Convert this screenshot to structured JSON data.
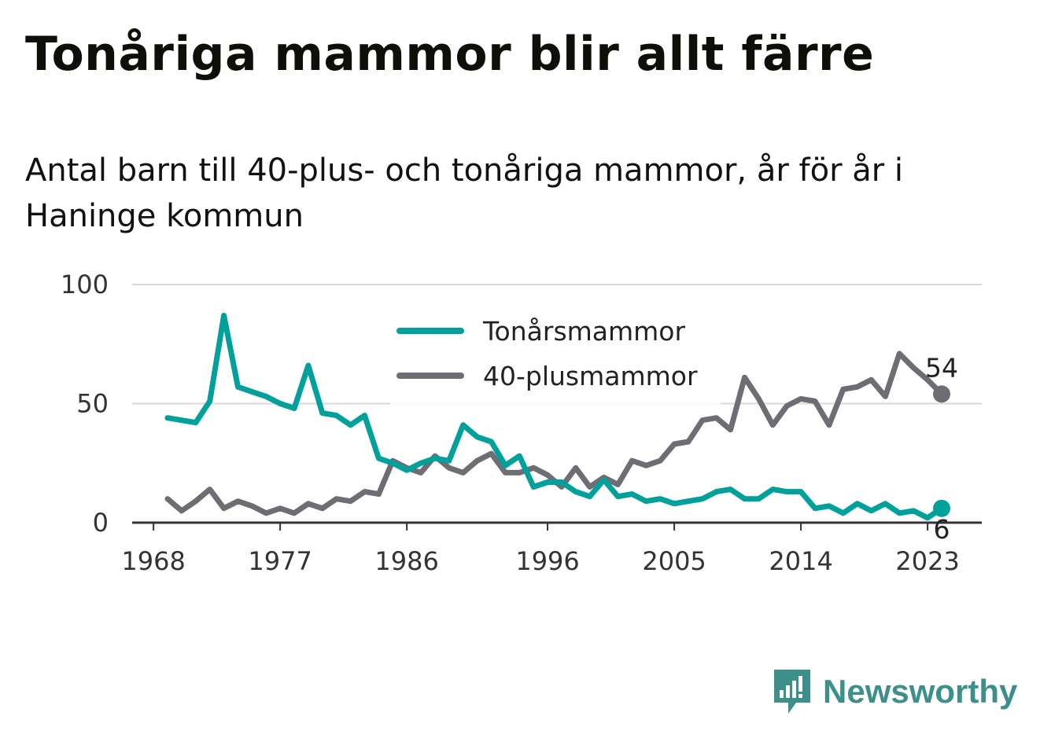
{
  "header": {
    "title": "Tonåriga mammor blir allt färre",
    "subtitle": "Antal barn till 40-plus- och tonåriga mammor, år för år i Haninge kommun"
  },
  "chart_data": {
    "type": "line",
    "title": "Tonåriga mammor blir allt färre",
    "subtitle": "Antal barn till 40-plus- och tonåriga mammor, år för år i Haninge kommun",
    "xlabel": "",
    "ylabel": "",
    "x": [
      1969,
      1970,
      1971,
      1972,
      1973,
      1974,
      1975,
      1976,
      1977,
      1978,
      1979,
      1980,
      1981,
      1982,
      1983,
      1984,
      1985,
      1986,
      1987,
      1988,
      1989,
      1990,
      1991,
      1992,
      1993,
      1994,
      1995,
      1996,
      1997,
      1998,
      1999,
      2000,
      2001,
      2002,
      2003,
      2004,
      2005,
      2006,
      2007,
      2008,
      2009,
      2010,
      2011,
      2012,
      2013,
      2014,
      2015,
      2016,
      2017,
      2018,
      2019,
      2020,
      2021,
      2022,
      2023,
      2024
    ],
    "xlim": [
      1968,
      2026
    ],
    "ylim": [
      0,
      100
    ],
    "x_ticks": [
      "1968",
      "1977",
      "1986",
      "1996",
      "2005",
      "2014",
      "2023"
    ],
    "y_ticks": [
      "0",
      "50",
      "100"
    ],
    "grid": true,
    "legend_position": "top-center",
    "series": [
      {
        "name": "Tonårsmammor",
        "color": "#00a19a",
        "values": [
          44,
          43,
          42,
          51,
          87,
          57,
          55,
          53,
          50,
          48,
          66,
          46,
          45,
          41,
          45,
          27,
          25,
          22,
          25,
          27,
          26,
          41,
          36,
          34,
          24,
          28,
          15,
          17,
          17,
          13,
          11,
          18,
          11,
          12,
          9,
          10,
          8,
          9,
          10,
          13,
          14,
          10,
          10,
          14,
          13,
          13,
          6,
          7,
          4,
          8,
          5,
          8,
          4,
          5,
          2,
          6
        ],
        "end_label": "6"
      },
      {
        "name": "40-plusmammor",
        "color": "#6e6d73",
        "values": [
          10,
          5,
          9,
          14,
          6,
          9,
          7,
          4,
          6,
          4,
          8,
          6,
          10,
          9,
          13,
          12,
          26,
          23,
          21,
          28,
          23,
          21,
          26,
          29,
          21,
          21,
          23,
          20,
          15,
          23,
          15,
          19,
          16,
          26,
          24,
          26,
          33,
          34,
          43,
          44,
          39,
          61,
          52,
          41,
          49,
          52,
          51,
          41,
          56,
          57,
          60,
          53,
          71,
          65,
          60,
          54
        ],
        "end_label": "54"
      }
    ]
  },
  "brand": {
    "name": "Newsworthy",
    "icon": "newsworthy-logo-icon",
    "color": "#3c8f8a"
  }
}
